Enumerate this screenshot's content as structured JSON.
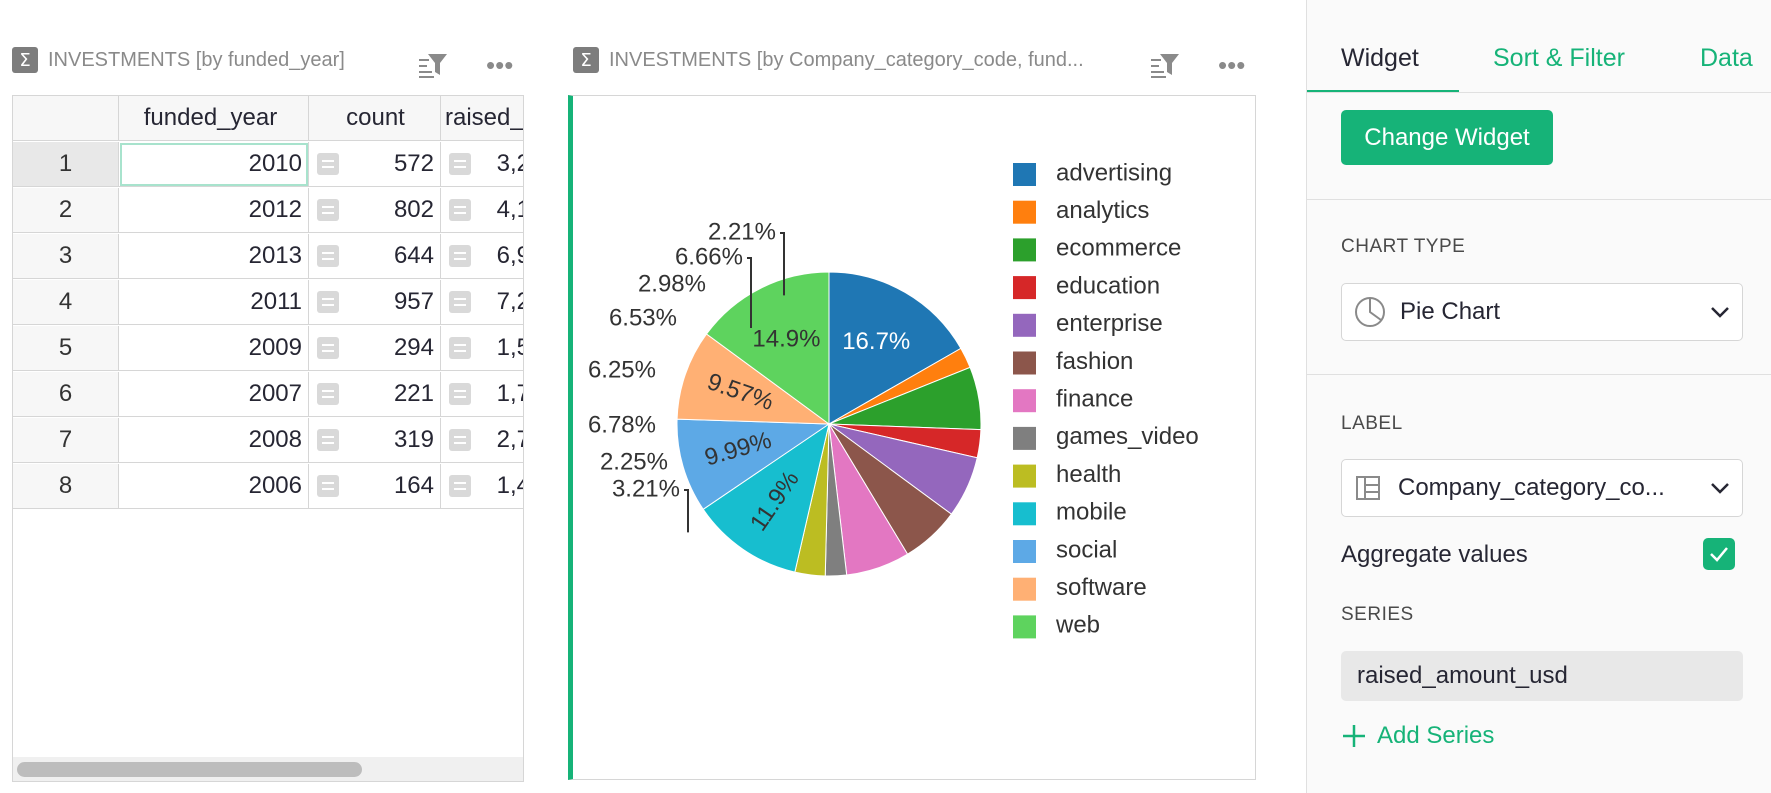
{
  "left_widget": {
    "title": "INVESTMENTS [by funded_year]",
    "sigma": "Σ",
    "columns": [
      "funded_year",
      "count",
      "raised_"
    ],
    "rows": [
      {
        "n": "1",
        "year": "2010",
        "count": "572",
        "raised": "3,2"
      },
      {
        "n": "2",
        "year": "2012",
        "count": "802",
        "raised": "4,1"
      },
      {
        "n": "3",
        "year": "2013",
        "count": "644",
        "raised": "6,9"
      },
      {
        "n": "4",
        "year": "2011",
        "count": "957",
        "raised": "7,2"
      },
      {
        "n": "5",
        "year": "2009",
        "count": "294",
        "raised": "1,5"
      },
      {
        "n": "6",
        "year": "2007",
        "count": "221",
        "raised": "1,7"
      },
      {
        "n": "7",
        "year": "2008",
        "count": "319",
        "raised": "2,7"
      },
      {
        "n": "8",
        "year": "2006",
        "count": "164",
        "raised": "1,4"
      }
    ]
  },
  "chart_widget": {
    "title": "INVESTMENTS [by Company_category_code, fund...",
    "sigma": "Σ"
  },
  "chart_data": {
    "type": "pie",
    "title": "",
    "categories": [
      "advertising",
      "analytics",
      "ecommerce",
      "education",
      "enterprise",
      "fashion",
      "finance",
      "games_video",
      "health",
      "mobile",
      "social",
      "software",
      "web"
    ],
    "values": [
      16.7,
      2.21,
      6.66,
      2.98,
      6.53,
      6.25,
      6.78,
      2.25,
      3.21,
      11.9,
      9.99,
      9.57,
      14.9
    ],
    "labels": [
      "16.7%",
      "2.21%",
      "6.66%",
      "2.98%",
      "6.53%",
      "6.25%",
      "6.78%",
      "2.25%",
      "3.21%",
      "11.9%",
      "9.99%",
      "9.57%",
      "14.9%"
    ],
    "colors": [
      "#1f77b4",
      "#ff7f0e",
      "#2ca02c",
      "#d62728",
      "#9467bd",
      "#8c564b",
      "#e377c2",
      "#7f7f7f",
      "#bcbd22",
      "#17becf",
      "#5da9e6",
      "#ffb074",
      "#5ed35e"
    ],
    "legend_position": "right"
  },
  "panel": {
    "tabs": [
      "Widget",
      "Sort & Filter",
      "Data"
    ],
    "change_widget": "Change Widget",
    "chart_type_label": "CHART TYPE",
    "chart_type_value": "Pie Chart",
    "label_label": "LABEL",
    "label_value": "Company_category_co...",
    "aggregate_label": "Aggregate values",
    "aggregate_checked": true,
    "series_label": "SERIES",
    "series_value": "raised_amount_usd",
    "add_series": "Add Series",
    "accent_color": "#16b378"
  }
}
